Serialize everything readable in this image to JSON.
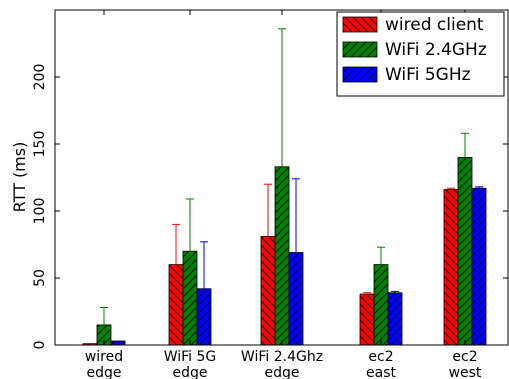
{
  "chart_data": {
    "type": "bar",
    "title": "",
    "xlabel": "",
    "ylabel": "RTT (ms)",
    "ylim": [
      0,
      250
    ],
    "yticks": [
      0,
      50,
      100,
      150,
      200
    ],
    "grid": false,
    "legend_position": "top-right",
    "categories": [
      [
        "wired",
        "edge"
      ],
      [
        "WiFi 5G",
        "edge"
      ],
      [
        "WiFi 2.4Ghz",
        "edge"
      ],
      [
        "ec2",
        "east"
      ],
      [
        "ec2",
        "west"
      ]
    ],
    "series": [
      {
        "name": "wired client",
        "color": "#ff0000",
        "hatch": "backslash",
        "values": [
          1,
          60,
          81,
          38,
          116
        ],
        "error_upper": [
          0,
          30,
          39,
          1,
          1
        ]
      },
      {
        "name": "WiFi 2.4GHz",
        "color": "#008000",
        "hatch": "slash",
        "values": [
          15,
          70,
          133,
          60,
          140
        ],
        "error_upper": [
          13,
          39,
          103,
          13,
          18
        ]
      },
      {
        "name": "WiFi 5GHz",
        "color": "#0000ff",
        "hatch": "slash",
        "values": [
          3,
          42,
          69,
          39,
          117
        ],
        "error_upper": [
          0,
          35,
          55,
          1,
          1
        ]
      }
    ]
  }
}
